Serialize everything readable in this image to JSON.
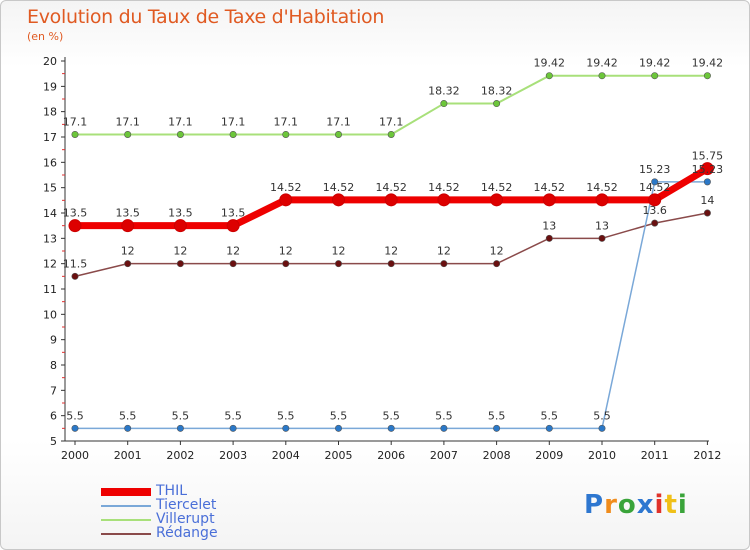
{
  "title": "Evolution du Taux de Taxe d'Habitation",
  "subtitle": "(en %)",
  "logo": {
    "text": "Proxiti",
    "colors": [
      "#2e77d0",
      "#f08c1c",
      "#3aa43a",
      "#2e77d0",
      "#e0322a",
      "#f0c018",
      "#3aa43a"
    ]
  },
  "chart_data": {
    "type": "line",
    "x": [
      "2000",
      "2001",
      "2002",
      "2003",
      "2004",
      "2005",
      "2006",
      "2007",
      "2008",
      "2009",
      "2010",
      "2011",
      "2012"
    ],
    "ylim": [
      5,
      20
    ],
    "yticks": [
      "5",
      "6",
      "7",
      "8",
      "9",
      "10",
      "11",
      "12",
      "13",
      "14",
      "15",
      "16",
      "17",
      "18",
      "19",
      "20"
    ],
    "grid": false,
    "legend_position": "bottom-left",
    "series": [
      {
        "name": "Villerupt",
        "color": "#a8e07a",
        "marker": "#6cc63a",
        "width": 2,
        "values": [
          17.1,
          17.1,
          17.1,
          17.1,
          17.1,
          17.1,
          17.1,
          18.32,
          18.32,
          19.42,
          19.42,
          19.42,
          19.42
        ],
        "labels": [
          "17.1",
          "17.1",
          "17.1",
          "17.1",
          "17.1",
          "17.1",
          "17.1",
          "18.32",
          "18.32",
          "19.42",
          "19.42",
          "19.42",
          "19.42"
        ]
      },
      {
        "name": "Rédange",
        "color": "#8a4a4a",
        "marker": "#6a1010",
        "width": 1.5,
        "values": [
          11.5,
          12,
          12,
          12,
          12,
          12,
          12,
          12,
          12,
          13,
          13,
          13.6,
          14
        ],
        "labels": [
          "11.5",
          "12",
          "12",
          "12",
          "12",
          "12",
          "12",
          "12",
          "12",
          "13",
          "13",
          "13.6",
          "14"
        ]
      },
      {
        "name": "Tiercelet",
        "color": "#7aa8d8",
        "marker": "#2a78c8",
        "width": 1.5,
        "values": [
          5.5,
          5.5,
          5.5,
          5.5,
          5.5,
          5.5,
          5.5,
          5.5,
          5.5,
          5.5,
          5.5,
          15.23,
          15.23
        ],
        "labels": [
          "5.5",
          "5.5",
          "5.5",
          "5.5",
          "5.5",
          "5.5",
          "5.5",
          "5.5",
          "5.5",
          "5.5",
          "5.5",
          "15.23",
          "15.23"
        ]
      },
      {
        "name": "THIL",
        "color": "#ee0000",
        "marker": "#dd0000",
        "width": 7,
        "values": [
          13.5,
          13.5,
          13.5,
          13.5,
          14.52,
          14.52,
          14.52,
          14.52,
          14.52,
          14.52,
          14.52,
          14.52,
          15.75
        ],
        "labels": [
          "13.5",
          "13.5",
          "13.5",
          "13.5",
          "14.52",
          "14.52",
          "14.52",
          "14.52",
          "14.52",
          "14.52",
          "14.52",
          "14.52",
          "15.75"
        ]
      }
    ],
    "legend": [
      {
        "name": "THIL",
        "color": "#ee0000",
        "width": 8
      },
      {
        "name": "Tiercelet",
        "color": "#7aa8d8",
        "width": 2
      },
      {
        "name": "Villerupt",
        "color": "#a8e07a",
        "width": 2
      },
      {
        "name": "Rédange",
        "color": "#8a4a4a",
        "width": 2
      }
    ]
  }
}
